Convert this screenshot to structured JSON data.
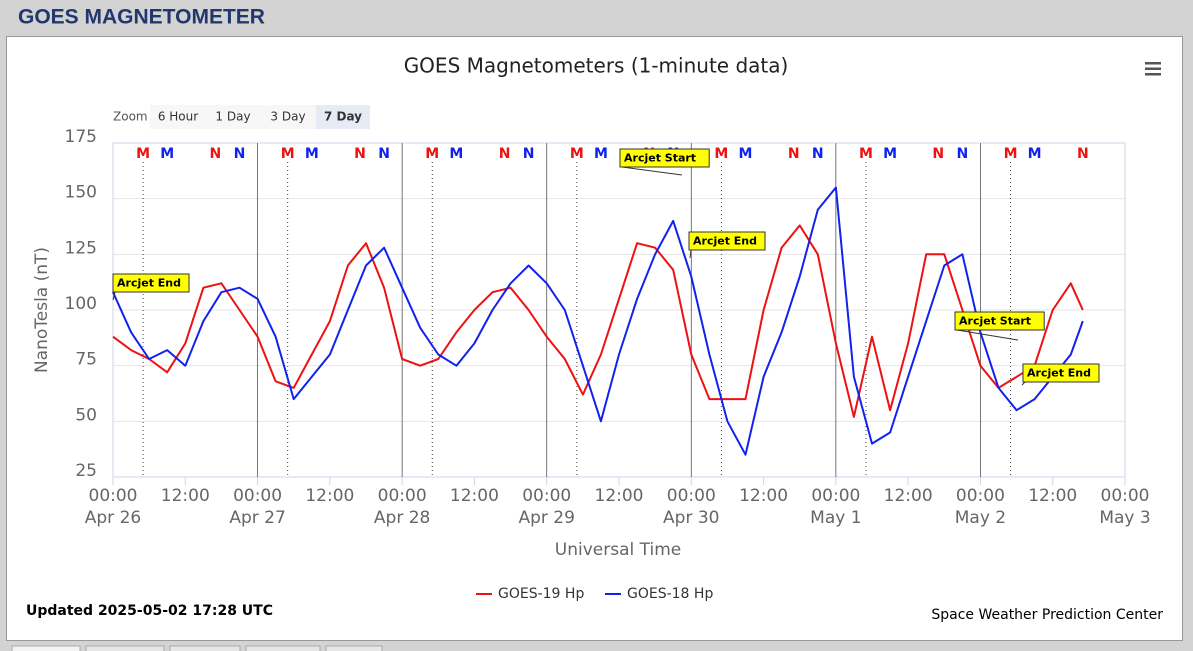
{
  "header": {
    "title": "GOES MAGNETOMETER"
  },
  "zoom": {
    "label": "Zoom",
    "buttons": [
      "6 Hour",
      "1 Day",
      "3 Day",
      "7 Day"
    ],
    "selected": "7 Day"
  },
  "chart_data": {
    "type": "line",
    "title": "GOES Magnetometers (1-minute data)",
    "y_label": "NanoTesla (nT)",
    "x_label": "Universal Time",
    "xlim": [
      "Apr 26 00:00",
      "May 3 00:00"
    ],
    "xticks": [
      {
        "value": "Apr 26 00:00",
        "label": [
          "00:00",
          "Apr 26"
        ]
      },
      {
        "value": "Apr 26 12:00",
        "label": [
          "12:00"
        ]
      },
      {
        "value": "Apr 27 00:00",
        "label": [
          "00:00",
          "Apr 27"
        ]
      },
      {
        "value": "Apr 27 12:00",
        "label": [
          "12:00"
        ]
      },
      {
        "value": "Apr 28 00:00",
        "label": [
          "00:00",
          "Apr 28"
        ]
      },
      {
        "value": "Apr 28 12:00",
        "label": [
          "12:00"
        ]
      },
      {
        "value": "Apr 29 00:00",
        "label": [
          "00:00",
          "Apr 29"
        ]
      },
      {
        "value": "Apr 29 12:00",
        "label": [
          "12:00"
        ]
      },
      {
        "value": "Apr 30 00:00",
        "label": [
          "00:00",
          "Apr 30"
        ]
      },
      {
        "value": "Apr 30 12:00",
        "label": [
          "12:00"
        ]
      },
      {
        "value": "May 1 00:00",
        "label": [
          "00:00",
          "May 1"
        ]
      },
      {
        "value": "May 1 12:00",
        "label": [
          "12:00"
        ]
      },
      {
        "value": "May 2 00:00",
        "label": [
          "00:00",
          "May 2"
        ]
      },
      {
        "value": "May 2 12:00",
        "label": [
          "12:00"
        ]
      },
      {
        "value": "May 3 00:00",
        "label": [
          "00:00",
          "May 3"
        ]
      }
    ],
    "ylim": [
      25,
      175
    ],
    "yticks": [
      25,
      50,
      75,
      100,
      125,
      150,
      175
    ],
    "grid": true,
    "x": [
      "Apr 26 00:00",
      "Apr 26 03:00",
      "Apr 26 06:00",
      "Apr 26 09:00",
      "Apr 26 12:00",
      "Apr 26 15:00",
      "Apr 26 18:00",
      "Apr 26 21:00",
      "Apr 27 00:00",
      "Apr 27 03:00",
      "Apr 27 06:00",
      "Apr 27 09:00",
      "Apr 27 12:00",
      "Apr 27 15:00",
      "Apr 27 18:00",
      "Apr 27 21:00",
      "Apr 28 00:00",
      "Apr 28 03:00",
      "Apr 28 06:00",
      "Apr 28 09:00",
      "Apr 28 12:00",
      "Apr 28 15:00",
      "Apr 28 18:00",
      "Apr 28 21:00",
      "Apr 29 00:00",
      "Apr 29 03:00",
      "Apr 29 06:00",
      "Apr 29 09:00",
      "Apr 29 12:00",
      "Apr 29 15:00",
      "Apr 29 18:00",
      "Apr 29 21:00",
      "Apr 30 00:00",
      "Apr 30 03:00",
      "Apr 30 06:00",
      "Apr 30 09:00",
      "Apr 30 12:00",
      "Apr 30 15:00",
      "Apr 30 18:00",
      "Apr 30 21:00",
      "May 1 00:00",
      "May 1 03:00",
      "May 1 06:00",
      "May 1 09:00",
      "May 1 12:00",
      "May 1 15:00",
      "May 1 18:00",
      "May 1 21:00",
      "May 2 00:00",
      "May 2 03:00",
      "May 2 06:00",
      "May 2 09:00",
      "May 2 12:00",
      "May 2 15:00",
      "May 2 17:00"
    ],
    "series": [
      {
        "name": "GOES-19 Hp",
        "color": "#ee1111",
        "values": [
          88,
          82,
          78,
          72,
          85,
          110,
          112,
          100,
          88,
          68,
          65,
          80,
          95,
          120,
          130,
          110,
          78,
          75,
          78,
          90,
          100,
          108,
          110,
          100,
          88,
          78,
          62,
          80,
          105,
          130,
          128,
          118,
          80,
          60,
          60,
          60,
          100,
          128,
          138,
          125,
          85,
          52,
          88,
          55,
          85,
          125,
          125,
          100,
          75,
          65,
          70,
          75,
          100,
          112,
          100
        ]
      },
      {
        "name": "GOES-18 Hp",
        "color": "#1122ee",
        "values": [
          108,
          90,
          78,
          82,
          75,
          95,
          108,
          110,
          105,
          88,
          60,
          70,
          80,
          100,
          120,
          128,
          110,
          92,
          80,
          75,
          85,
          100,
          112,
          120,
          112,
          100,
          75,
          50,
          80,
          105,
          125,
          140,
          115,
          80,
          50,
          35,
          70,
          90,
          115,
          145,
          155,
          70,
          40,
          45,
          70,
          95,
          120,
          125,
          90,
          65,
          55,
          60,
          70,
          80,
          95
        ]
      }
    ],
    "markers": [
      {
        "label": "M",
        "color": "#ee1111",
        "x": [
          "Apr 26 05:00",
          "Apr 27 05:00",
          "Apr 28 05:00",
          "Apr 29 05:00",
          "Apr 30 05:00",
          "May 1 05:00",
          "May 2 05:00"
        ]
      },
      {
        "label": "M",
        "color": "#1122ee",
        "x": [
          "Apr 26 09:00",
          "Apr 27 09:00",
          "Apr 28 09:00",
          "Apr 29 09:00",
          "Apr 30 09:00",
          "May 1 09:00",
          "May 2 09:00"
        ]
      },
      {
        "label": "N",
        "color": "#ee1111",
        "x": [
          "Apr 26 17:00",
          "Apr 27 17:00",
          "Apr 28 17:00",
          "Apr 29 17:00",
          "Apr 30 17:00",
          "May 1 17:00",
          "May 2 17:00"
        ]
      },
      {
        "label": "N",
        "color": "#1122ee",
        "x": [
          "Apr 26 21:00",
          "Apr 27 21:00",
          "Apr 28 21:00",
          "Apr 29 21:00",
          "Apr 30 21:00",
          "May 1 21:00"
        ]
      }
    ],
    "annotations": [
      "Arcjet End",
      "Arcjet Start",
      "Arcjet End",
      "Arcjet Start",
      "Arcjet End"
    ]
  },
  "footer": {
    "updated": "Updated 2025-05-02 17:28 UTC",
    "credit": "Space Weather Prediction Center"
  }
}
